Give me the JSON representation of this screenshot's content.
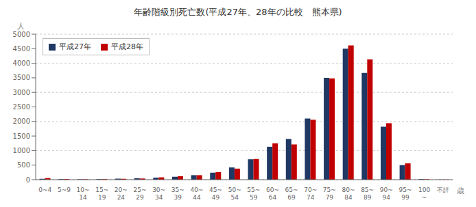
{
  "chart_data": {
    "type": "bar",
    "title": "年齢階級別死亡数(平成27年、28年の比較　熊本県)",
    "ylabel": "人",
    "xlabel": "歳",
    "categories": [
      "0~4",
      "5~9",
      "10~\n14",
      "15~\n19",
      "20~\n24",
      "25~\n29",
      "30~\n34",
      "35~\n39",
      "40~\n44",
      "45~\n49",
      "50~\n54",
      "55~\n59",
      "60~\n64",
      "65~\n69",
      "70~\n74",
      "75~\n79",
      "80~\n84",
      "85~\n89",
      "90~\n94",
      "95~\n99",
      "100\n~",
      "不詳"
    ],
    "series": [
      {
        "name": "平成27年",
        "color": "#1F3864",
        "values": [
          30,
          20,
          15,
          20,
          35,
          50,
          70,
          100,
          155,
          240,
          420,
          700,
          1130,
          1400,
          2100,
          3500,
          4500,
          3670,
          1820,
          500,
          20,
          5
        ]
      },
      {
        "name": "平成28年",
        "color": "#C00000",
        "values": [
          55,
          25,
          15,
          20,
          30,
          40,
          80,
          115,
          155,
          260,
          380,
          710,
          1250,
          1210,
          2060,
          3480,
          4610,
          4130,
          1940,
          560,
          15,
          5
        ]
      }
    ],
    "ylim": [
      0,
      5000
    ],
    "yticks": [
      0,
      500,
      1000,
      1500,
      2000,
      2500,
      3000,
      3500,
      4000,
      4500,
      5000
    ],
    "grid": true,
    "legend": "upper left"
  }
}
